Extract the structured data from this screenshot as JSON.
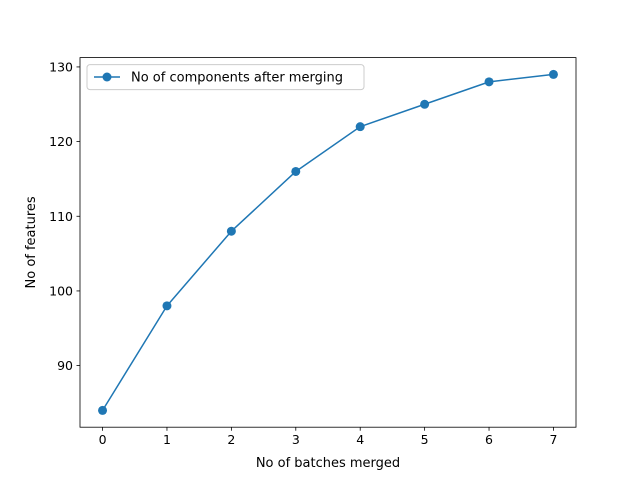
{
  "chart_data": {
    "type": "line",
    "title": "",
    "xlabel": "No of batches merged",
    "ylabel": "No of features",
    "x": [
      0,
      1,
      2,
      3,
      4,
      5,
      6,
      7
    ],
    "series": [
      {
        "name": "No of components after merging",
        "values": [
          84,
          98,
          108,
          116,
          122,
          125,
          128,
          129
        ],
        "color": "#1f77b4",
        "marker": "circle"
      }
    ],
    "x_ticks": [
      "0",
      "1",
      "2",
      "3",
      "4",
      "5",
      "6",
      "7"
    ],
    "y_ticks": [
      "90",
      "100",
      "110",
      "120",
      "130"
    ],
    "xlim": [
      -0.35,
      7.35
    ],
    "ylim": [
      81.75,
      131.25
    ],
    "grid": false,
    "legend_position": "top-left"
  }
}
